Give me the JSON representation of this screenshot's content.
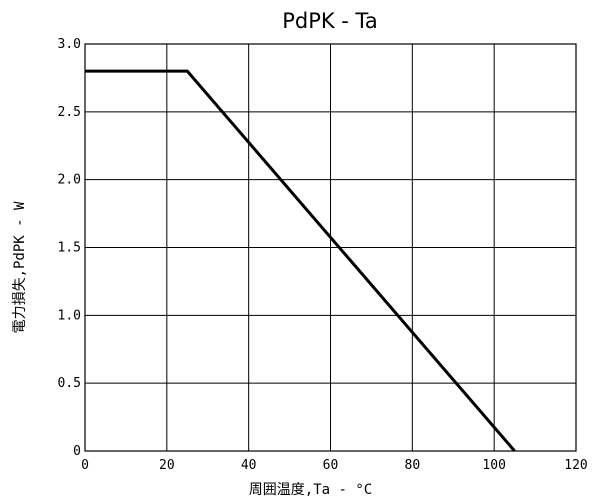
{
  "chart_data": {
    "type": "line",
    "title": "PdPK - Ta",
    "xlabel": "周囲温度,Ta - °C",
    "ylabel": "電力損失,PdPK - W",
    "xlim": [
      0,
      120
    ],
    "ylim": [
      0,
      3.0
    ],
    "xticks": [
      "0",
      "20",
      "40",
      "60",
      "80",
      "100",
      "120"
    ],
    "yticks": [
      "0",
      "0.5",
      "1.0",
      "1.5",
      "2.0",
      "2.5",
      "3.0"
    ],
    "grid": true,
    "series": [
      {
        "x": [
          0,
          25,
          105
        ],
        "y": [
          2.8,
          2.8,
          0
        ]
      }
    ]
  }
}
